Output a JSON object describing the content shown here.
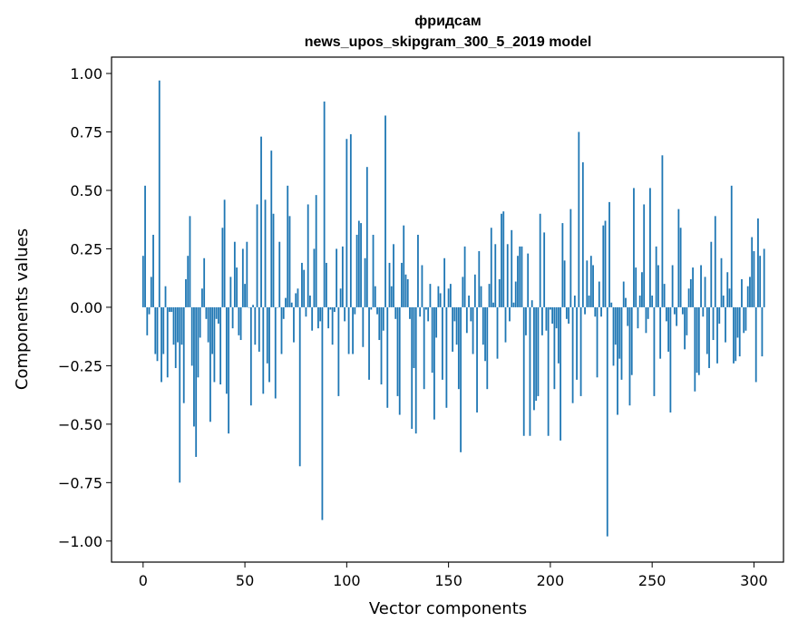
{
  "chart_data": {
    "type": "bar",
    "title": "фридсам",
    "subtitle": "news_upos_skipgram_300_5_2019 model",
    "xlabel": "Vector components",
    "ylabel": "Components values",
    "xlim": [
      -15.5,
      314.5
    ],
    "ylim": [
      -1.09,
      1.07
    ],
    "xticks": [
      0,
      50,
      100,
      150,
      200,
      250,
      300
    ],
    "xtick_labels": [
      "0",
      "50",
      "100",
      "150",
      "200",
      "250",
      "300"
    ],
    "yticks": [
      1.0,
      0.75,
      0.5,
      0.25,
      0.0,
      -0.25,
      -0.5,
      -0.75,
      -1.0
    ],
    "ytick_labels": [
      "1.00",
      "0.75",
      "0.50",
      "0.25",
      "0.00",
      "−0.25",
      "−0.50",
      "−0.75",
      "−1.00"
    ],
    "grid": false,
    "bar_color": "#1f77b4",
    "values": [
      0.22,
      0.52,
      -0.12,
      -0.03,
      0.13,
      0.31,
      -0.2,
      -0.23,
      0.97,
      -0.32,
      -0.2,
      0.09,
      -0.3,
      -0.02,
      -0.02,
      -0.16,
      -0.26,
      -0.15,
      -0.75,
      -0.16,
      -0.41,
      0.12,
      0.22,
      0.39,
      -0.25,
      -0.51,
      -0.64,
      -0.3,
      -0.13,
      0.08,
      0.21,
      -0.05,
      -0.15,
      -0.49,
      -0.2,
      -0.32,
      -0.05,
      -0.07,
      -0.33,
      0.34,
      0.46,
      -0.37,
      -0.54,
      0.13,
      -0.09,
      0.28,
      0.17,
      -0.12,
      -0.14,
      0.25,
      0.1,
      0.28,
      0.0,
      -0.42,
      0.01,
      -0.16,
      0.44,
      -0.19,
      0.73,
      -0.37,
      0.46,
      -0.24,
      -0.32,
      0.67,
      0.4,
      -0.39,
      0.0,
      0.28,
      -0.2,
      -0.05,
      0.04,
      0.52,
      0.39,
      0.02,
      -0.15,
      0.06,
      0.08,
      -0.68,
      0.19,
      0.16,
      -0.04,
      0.44,
      0.05,
      -0.1,
      0.25,
      0.48,
      -0.09,
      -0.06,
      -0.91,
      0.88,
      0.19,
      -0.09,
      -0.01,
      -0.16,
      -0.02,
      0.25,
      -0.38,
      0.08,
      0.26,
      -0.06,
      0.72,
      -0.2,
      0.74,
      -0.2,
      -0.03,
      0.31,
      0.37,
      0.36,
      -0.17,
      0.21,
      0.6,
      -0.31,
      -0.01,
      0.31,
      0.09,
      -0.03,
      -0.14,
      -0.33,
      -0.1,
      0.82,
      -0.43,
      0.19,
      0.09,
      0.27,
      -0.05,
      -0.38,
      -0.46,
      0.19,
      0.35,
      0.14,
      0.12,
      -0.05,
      -0.52,
      -0.26,
      -0.54,
      0.31,
      -0.04,
      0.18,
      -0.35,
      -0.01,
      -0.06,
      0.1,
      -0.28,
      -0.48,
      -0.13,
      0.09,
      0.06,
      -0.31,
      0.21,
      -0.43,
      0.08,
      0.1,
      -0.19,
      -0.06,
      -0.16,
      -0.35,
      -0.62,
      0.13,
      0.26,
      -0.11,
      0.05,
      -0.06,
      -0.2,
      0.14,
      -0.45,
      0.24,
      0.09,
      -0.16,
      -0.23,
      -0.35,
      0.1,
      0.34,
      0.02,
      0.27,
      -0.22,
      0.12,
      0.4,
      0.41,
      -0.15,
      0.27,
      -0.06,
      0.33,
      0.02,
      0.11,
      0.22,
      0.26,
      0.26,
      -0.55,
      -0.12,
      0.23,
      -0.55,
      0.03,
      -0.44,
      -0.4,
      -0.38,
      0.4,
      -0.12,
      0.32,
      -0.1,
      -0.55,
      -0.01,
      -0.07,
      -0.35,
      -0.09,
      -0.24,
      -0.57,
      0.36,
      0.2,
      -0.05,
      -0.07,
      0.42,
      -0.41,
      0.05,
      -0.31,
      0.75,
      -0.38,
      0.62,
      -0.03,
      0.2,
      0.05,
      0.22,
      0.18,
      -0.04,
      -0.3,
      0.11,
      -0.04,
      0.35,
      0.37,
      -0.98,
      0.45,
      0.02,
      -0.25,
      -0.16,
      -0.46,
      -0.22,
      -0.31,
      0.11,
      0.04,
      -0.08,
      -0.42,
      -0.29,
      0.51,
      0.17,
      -0.09,
      0.05,
      0.15,
      0.44,
      -0.11,
      -0.05,
      0.51,
      0.05,
      -0.38,
      0.26,
      0.18,
      -0.22,
      0.65,
      0.1,
      -0.06,
      -0.19,
      -0.45,
      0.18,
      -0.03,
      -0.08,
      0.42,
      0.34,
      -0.03,
      -0.18,
      -0.12,
      0.08,
      0.12,
      0.17,
      -0.36,
      -0.28,
      -0.29,
      0.18,
      -0.04,
      0.13,
      -0.2,
      -0.26,
      0.28,
      -0.14,
      0.39,
      -0.24,
      -0.07,
      0.21,
      0.05,
      -0.15,
      0.15,
      0.08,
      0.52,
      -0.24,
      -0.23,
      -0.13,
      -0.21,
      0.12,
      -0.11,
      -0.1,
      0.09,
      0.13,
      0.3,
      0.24,
      -0.32,
      0.38,
      0.22,
      -0.21,
      0.25
    ]
  }
}
